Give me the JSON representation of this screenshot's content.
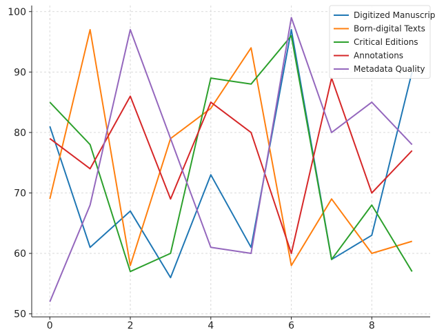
{
  "chart_data": {
    "type": "line",
    "title": "",
    "xlabel": "",
    "ylabel": "",
    "x": [
      0,
      1,
      2,
      3,
      4,
      5,
      6,
      7,
      8,
      9
    ],
    "xlim": [
      -0.45,
      9.45
    ],
    "ylim": [
      49.5,
      101
    ],
    "x_ticks": [
      0,
      2,
      4,
      6,
      8
    ],
    "y_ticks": [
      50,
      60,
      70,
      80,
      90,
      100
    ],
    "grid": true,
    "legend_position": "top-right",
    "series": [
      {
        "name": "Digitized Manuscripts",
        "color": "#1f77b4",
        "values": [
          81,
          61,
          67,
          56,
          73,
          61,
          97,
          59,
          63,
          90
        ]
      },
      {
        "name": "Born-digital Texts",
        "color": "#ff7f0e",
        "values": [
          69,
          97,
          58,
          79,
          84,
          94,
          58,
          69,
          60,
          62
        ]
      },
      {
        "name": "Critical Editions",
        "color": "#2ca02c",
        "values": [
          85,
          78,
          57,
          60,
          89,
          88,
          96,
          59,
          68,
          57
        ]
      },
      {
        "name": "Annotations",
        "color": "#d62728",
        "values": [
          79,
          74,
          86,
          69,
          85,
          80,
          60,
          89,
          70,
          77
        ]
      },
      {
        "name": "Metadata Quality",
        "color": "#9467bd",
        "values": [
          52,
          68,
          97,
          79,
          61,
          60,
          99,
          80,
          85,
          78
        ]
      }
    ]
  }
}
